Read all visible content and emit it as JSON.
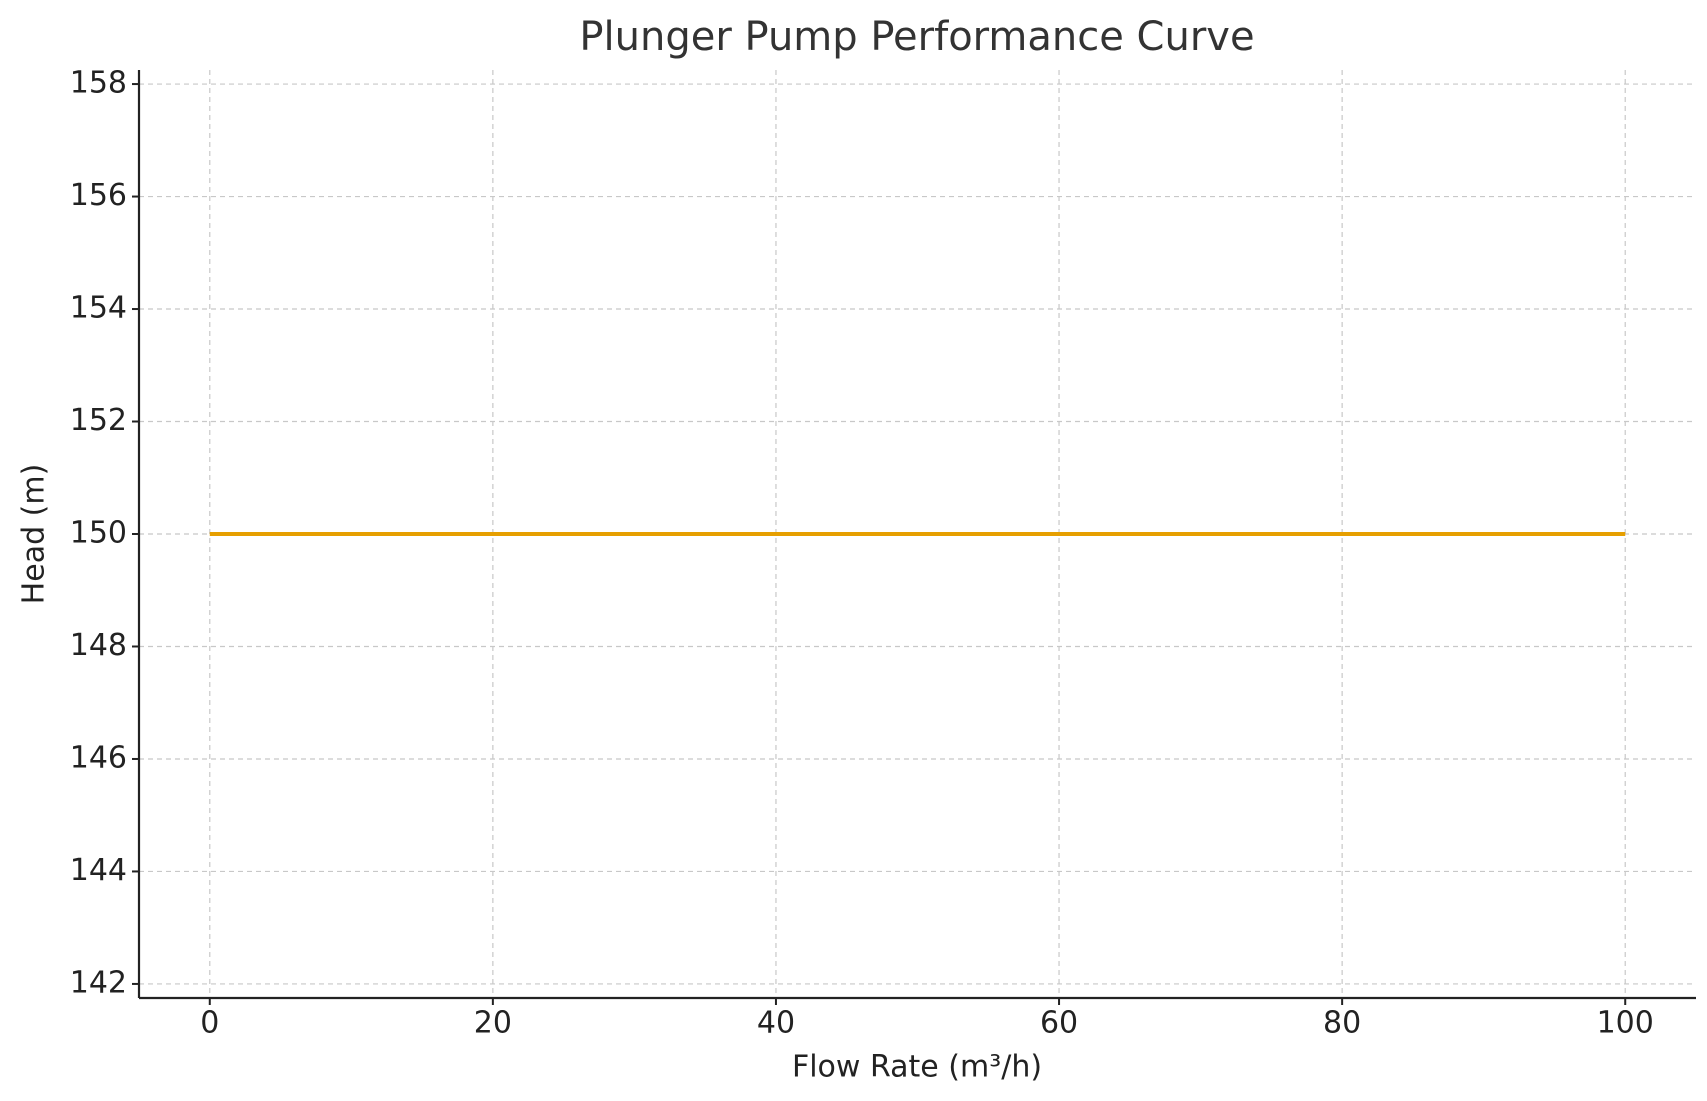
{
  "chart_data": {
    "type": "line",
    "title": "Plunger Pump Performance Curve",
    "x_label": "Flow Rate (m³/h)",
    "y_label": "Head (m)",
    "x": [
      0,
      100
    ],
    "series": [
      {
        "values": [
          150,
          150
        ],
        "color": "#e69f00"
      }
    ],
    "xlim": [
      -5,
      105
    ],
    "xticks": [
      0,
      20,
      40,
      60,
      80,
      100
    ],
    "ylim": [
      141.75,
      158.25
    ],
    "yticks": [
      142,
      144,
      146,
      148,
      150,
      152,
      154,
      156,
      158
    ],
    "grid": true
  }
}
